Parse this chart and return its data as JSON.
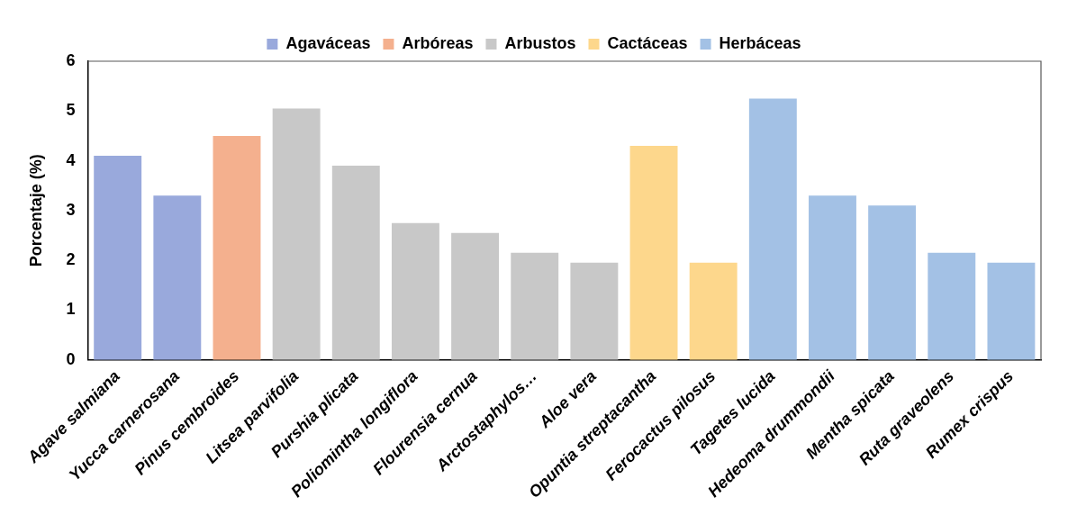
{
  "chart_data": {
    "type": "bar",
    "ylabel": "Porcentaje (%)",
    "categories": [
      "Agave salmiana",
      "Yucca carnerosana",
      "Pinus cembroides",
      "Litsea parvifolia",
      "Purshia plicata",
      "Poliomintha longiflora",
      "Flourensia cernua",
      "Arctostaphylos…",
      "Aloe vera",
      "Opuntia streptacantha",
      "Ferocactus pilosus",
      "Tagetes lucida",
      "Hedeoma drummondii",
      "Mentha spicata",
      "Ruta graveolens",
      "Rumex crispus"
    ],
    "series": [
      {
        "name": "Agaváceas",
        "color": "#99a9dc",
        "values": [
          4.1,
          3.3,
          null,
          null,
          null,
          null,
          null,
          null,
          null,
          null,
          null,
          null,
          null,
          null,
          null,
          null
        ]
      },
      {
        "name": "Arbóreas",
        "color": "#f4b08e",
        "values": [
          null,
          null,
          4.5,
          null,
          null,
          null,
          null,
          null,
          null,
          null,
          null,
          null,
          null,
          null,
          null,
          null
        ]
      },
      {
        "name": "Arbustos",
        "color": "#c8c8c8",
        "values": [
          null,
          null,
          null,
          5.05,
          3.9,
          2.75,
          2.55,
          2.15,
          1.95,
          null,
          null,
          null,
          null,
          null,
          null,
          null
        ]
      },
      {
        "name": "Cactáceas",
        "color": "#fdd78c",
        "values": [
          null,
          null,
          null,
          null,
          null,
          null,
          null,
          null,
          null,
          4.3,
          1.95,
          null,
          null,
          null,
          null,
          null
        ]
      },
      {
        "name": "Herbáceas",
        "color": "#a3c1e5",
        "values": [
          null,
          null,
          null,
          null,
          null,
          null,
          null,
          null,
          null,
          null,
          null,
          5.25,
          3.3,
          3.1,
          2.15,
          1.95
        ]
      }
    ],
    "ylim": [
      0,
      6
    ],
    "yticks": [
      0,
      1,
      2,
      3,
      4,
      5,
      6
    ],
    "grid": false,
    "legend": "top"
  }
}
